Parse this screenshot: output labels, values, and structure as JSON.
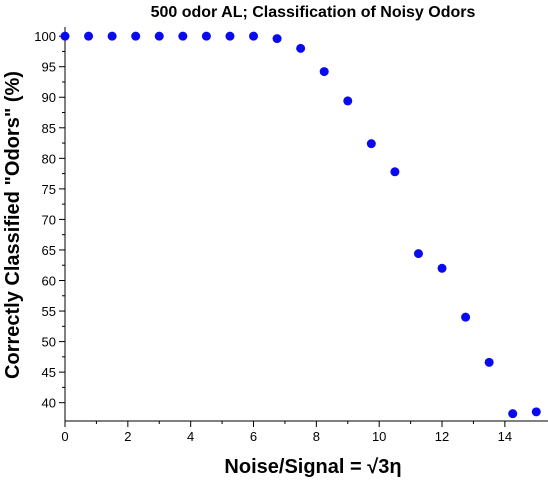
{
  "chart_data": {
    "type": "scatter",
    "title": "500 odor AL; Classification of Noisy Odors",
    "xlabel": "Noise/Signal = √3η",
    "ylabel": "Correctly Classified \"Odors\"  (%)",
    "xlim": [
      0,
      15.5
    ],
    "ylim": [
      37,
      101.5
    ],
    "xticks": [
      0,
      2,
      4,
      6,
      8,
      10,
      12,
      14
    ],
    "yticks": [
      40,
      45,
      50,
      55,
      60,
      65,
      70,
      75,
      80,
      85,
      90,
      95,
      100
    ],
    "grid": false,
    "color": "#0a0af0",
    "x": [
      0,
      0.75,
      1.5,
      2.25,
      3.0,
      3.75,
      4.5,
      5.25,
      6.0,
      6.75,
      7.5,
      8.25,
      9.0,
      9.75,
      10.5,
      11.25,
      12.0,
      12.75,
      13.5,
      14.25,
      15.0
    ],
    "y": [
      100,
      100,
      100,
      100,
      100,
      100,
      100,
      100,
      100,
      99.6,
      98.0,
      94.2,
      89.4,
      82.4,
      77.8,
      64.4,
      62.0,
      54.0,
      46.6,
      38.2,
      38.5
    ]
  }
}
